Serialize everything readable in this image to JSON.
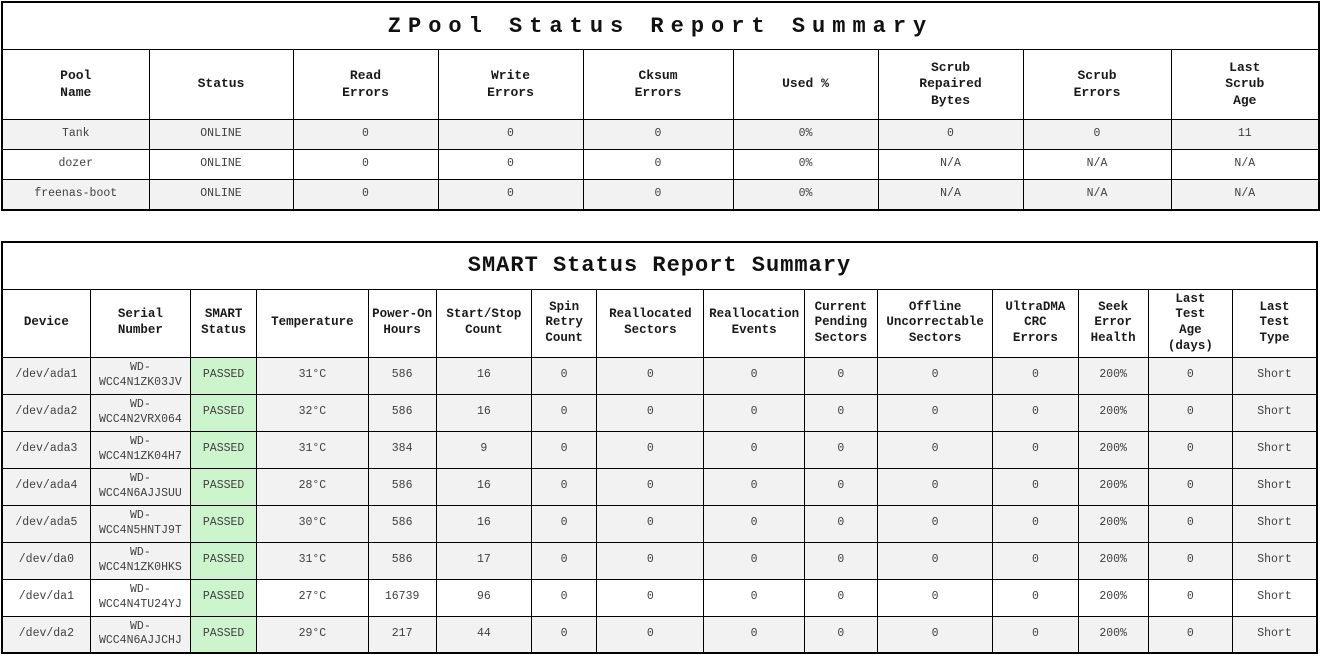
{
  "colors": {
    "row_stripe": "#f2f2f2",
    "row_plain": "#ffffff",
    "passed_bg": "#cdf5cd",
    "border": "#000000"
  },
  "zpool_report": {
    "title": "ZPool Status Report Summary",
    "headers": [
      "Pool\nName",
      "Status",
      "Read\nErrors",
      "Write\nErrors",
      "Cksum\nErrors",
      "Used %",
      "Scrub\nRepaired\nBytes",
      "Scrub\nErrors",
      "Last\nScrub\nAge"
    ],
    "rows": [
      {
        "shaded": true,
        "cells": [
          "Tank",
          "ONLINE",
          "0",
          "0",
          "0",
          "0%",
          "0",
          "0",
          "11"
        ]
      },
      {
        "shaded": false,
        "cells": [
          "dozer",
          "ONLINE",
          "0",
          "0",
          "0",
          "0%",
          "N/A",
          "N/A",
          "N/A"
        ]
      },
      {
        "shaded": true,
        "cells": [
          "freenas-boot",
          "ONLINE",
          "0",
          "0",
          "0",
          "0%",
          "N/A",
          "N/A",
          "N/A"
        ]
      }
    ]
  },
  "smart_report": {
    "title": "SMART Status Report Summary",
    "status_passed_label": "PASSED",
    "headers": [
      "Device",
      "Serial\nNumber",
      "SMART\nStatus",
      "Temperature",
      "Power-On\nHours",
      "Start/Stop\nCount",
      "Spin\nRetry\nCount",
      "Reallocated\nSectors",
      "Reallocation\nEvents",
      "Current\nPending\nSectors",
      "Offline\nUncorrectable\nSectors",
      "UltraDMA\nCRC\nErrors",
      "Seek\nError\nHealth",
      "Last\nTest\nAge\n(days)",
      "Last\nTest\nType"
    ],
    "rows": [
      {
        "shaded": true,
        "cells": [
          "/dev/ada1",
          "WD-WCC4N1ZK03JV",
          "PASSED",
          "31°C",
          "586",
          "16",
          "0",
          "0",
          "0",
          "0",
          "0",
          "0",
          "200%",
          "0",
          "Short"
        ]
      },
      {
        "shaded": true,
        "cells": [
          "/dev/ada2",
          "WD-WCC4N2VRX064",
          "PASSED",
          "32°C",
          "586",
          "16",
          "0",
          "0",
          "0",
          "0",
          "0",
          "0",
          "200%",
          "0",
          "Short"
        ]
      },
      {
        "shaded": true,
        "cells": [
          "/dev/ada3",
          "WD-WCC4N1ZK04H7",
          "PASSED",
          "31°C",
          "384",
          "9",
          "0",
          "0",
          "0",
          "0",
          "0",
          "0",
          "200%",
          "0",
          "Short"
        ]
      },
      {
        "shaded": true,
        "cells": [
          "/dev/ada4",
          "WD-WCC4N6AJJSUU",
          "PASSED",
          "28°C",
          "586",
          "16",
          "0",
          "0",
          "0",
          "0",
          "0",
          "0",
          "200%",
          "0",
          "Short"
        ]
      },
      {
        "shaded": true,
        "cells": [
          "/dev/ada5",
          "WD-WCC4N5HNTJ9T",
          "PASSED",
          "30°C",
          "586",
          "16",
          "0",
          "0",
          "0",
          "0",
          "0",
          "0",
          "200%",
          "0",
          "Short"
        ]
      },
      {
        "shaded": true,
        "cells": [
          "/dev/da0",
          "WD-WCC4N1ZK0HKS",
          "PASSED",
          "31°C",
          "586",
          "17",
          "0",
          "0",
          "0",
          "0",
          "0",
          "0",
          "200%",
          "0",
          "Short"
        ]
      },
      {
        "shaded": false,
        "cells": [
          "/dev/da1",
          "WD-WCC4N4TU24YJ",
          "PASSED",
          "27°C",
          "16739",
          "96",
          "0",
          "0",
          "0",
          "0",
          "0",
          "0",
          "200%",
          "0",
          "Short"
        ]
      },
      {
        "shaded": true,
        "cells": [
          "/dev/da2",
          "WD-WCC4N6AJJCHJ",
          "PASSED",
          "29°C",
          "217",
          "44",
          "0",
          "0",
          "0",
          "0",
          "0",
          "0",
          "200%",
          "0",
          "Short"
        ]
      }
    ]
  }
}
